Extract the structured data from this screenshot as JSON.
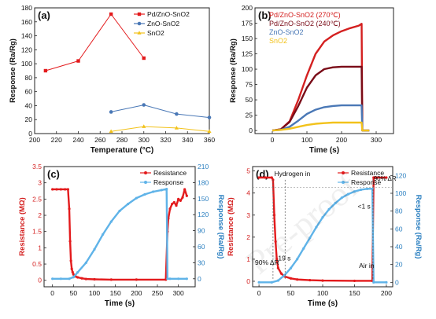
{
  "watermark": "Pre-proof",
  "chart_data": [
    {
      "panel": "(a)",
      "type": "line",
      "xlabel": "Temperature (°C)",
      "ylabel": "Response (Ra/Rg)",
      "xlim": [
        200,
        360
      ],
      "ylim": [
        0,
        180
      ],
      "xticks": [
        200,
        220,
        240,
        260,
        280,
        300,
        320,
        340,
        360
      ],
      "yticks": [
        0,
        20,
        40,
        60,
        80,
        100,
        120,
        140,
        160,
        180
      ],
      "legend_position": "top-right",
      "series": [
        {
          "name": "Pd/ZnO-SnO2",
          "color": "#e31a1c",
          "marker": "square",
          "x": [
            210,
            240,
            270,
            300
          ],
          "y": [
            90,
            104,
            171,
            108
          ]
        },
        {
          "name": "ZnO-SnO2",
          "color": "#4a78b6",
          "marker": "circle",
          "x": [
            270,
            300,
            330,
            360
          ],
          "y": [
            31,
            41,
            28,
            23
          ]
        },
        {
          "name": "SnO2",
          "color": "#f2c21b",
          "marker": "triangle",
          "x": [
            270,
            300,
            330,
            360
          ],
          "y": [
            3,
            10,
            8,
            3
          ]
        }
      ]
    },
    {
      "panel": "(b)",
      "type": "line",
      "xlabel": "Time (s)",
      "ylabel": "Response (Ra/Rg)",
      "xlim": [
        -50,
        350
      ],
      "ylim": [
        -5,
        200
      ],
      "xticks": [
        0,
        100,
        200,
        300
      ],
      "yticks": [
        0,
        25,
        50,
        75,
        100,
        125,
        150,
        175,
        200
      ],
      "legend_position": "top-left",
      "series": [
        {
          "name": "Pd/ZnO-SnO2 (270℃)",
          "color": "#d42020",
          "x": [
            0,
            25,
            50,
            75,
            100,
            125,
            150,
            175,
            200,
            225,
            250,
            258,
            260,
            280
          ],
          "y": [
            0,
            2,
            15,
            50,
            90,
            125,
            145,
            155,
            162,
            167,
            171,
            174,
            0,
            0
          ]
        },
        {
          "name": "Pd/ZnO-SnO2 (240℃)",
          "color": "#7a0c18",
          "x": [
            0,
            25,
            50,
            75,
            100,
            125,
            150,
            175,
            200,
            225,
            250,
            258,
            260,
            280
          ],
          "y": [
            0,
            2,
            14,
            40,
            70,
            90,
            100,
            103,
            104,
            104,
            104,
            104,
            0,
            0
          ]
        },
        {
          "name": "ZnO-SnO2",
          "color": "#4a78b6",
          "x": [
            0,
            25,
            50,
            75,
            100,
            125,
            150,
            175,
            200,
            225,
            250,
            258,
            260,
            280
          ],
          "y": [
            0,
            1,
            6,
            16,
            27,
            34,
            38,
            40,
            41,
            41,
            41,
            41,
            0,
            0
          ]
        },
        {
          "name": "SnO2",
          "color": "#f2c21b",
          "x": [
            0,
            25,
            50,
            75,
            100,
            125,
            150,
            175,
            200,
            225,
            250,
            258,
            260,
            280
          ],
          "y": [
            0,
            1,
            3,
            6,
            9,
            11,
            12,
            13,
            13,
            13,
            13,
            13,
            0,
            0
          ]
        }
      ]
    },
    {
      "panel": "(c)",
      "type": "line",
      "xlabel": "Time (s)",
      "ylabel": "Resistance (MΩ)",
      "ylabel_right": "Response (Ra/Rg)",
      "xlim": [
        -20,
        340
      ],
      "ylim": [
        -0.2,
        3.5
      ],
      "ylim_right": [
        -15,
        210
      ],
      "xticks": [
        0,
        50,
        100,
        150,
        200,
        250,
        300
      ],
      "yticks": [
        0.0,
        0.5,
        1.0,
        1.5,
        2.0,
        2.5,
        3.0,
        3.5
      ],
      "yticks_right": [
        0,
        30,
        60,
        90,
        120,
        150,
        180,
        210
      ],
      "legend_position": "top-right",
      "series": [
        {
          "name": "Resistance",
          "axis": "left",
          "color": "#e31a1c",
          "x": [
            0,
            10,
            20,
            30,
            37,
            40,
            42,
            44,
            46,
            48,
            50,
            55,
            60,
            70,
            80,
            100,
            140,
            200,
            270,
            274,
            276,
            280,
            285,
            290,
            295,
            300,
            305,
            310,
            315,
            320
          ],
          "y": [
            2.8,
            2.8,
            2.8,
            2.8,
            2.8,
            2.2,
            1.2,
            0.6,
            0.35,
            0.25,
            0.18,
            0.12,
            0.09,
            0.06,
            0.04,
            0.03,
            0.02,
            0.02,
            0.02,
            1.5,
            1.9,
            2.2,
            2.35,
            2.4,
            2.3,
            2.5,
            2.45,
            2.55,
            2.8,
            2.6
          ]
        },
        {
          "name": "Response",
          "axis": "right",
          "color": "#5fb3e8",
          "x": [
            0,
            20,
            40,
            50,
            60,
            80,
            100,
            120,
            140,
            160,
            180,
            200,
            220,
            240,
            260,
            272,
            274,
            280,
            300,
            320
          ],
          "y": [
            0,
            0,
            0,
            3,
            12,
            30,
            55,
            83,
            107,
            127,
            140,
            151,
            158,
            163,
            166,
            168,
            0,
            0,
            0,
            0
          ]
        }
      ]
    },
    {
      "panel": "(d)",
      "type": "line",
      "xlabel": "Time (s)",
      "ylabel": "Resistance (MΩ)",
      "ylabel_right": "Response (Ra/Rg)",
      "xlim": [
        -10,
        210
      ],
      "ylim": [
        -0.25,
        5.2
      ],
      "ylim_right": [
        -5,
        130
      ],
      "xticks": [
        0,
        50,
        100,
        150,
        200
      ],
      "yticks": [
        0,
        1,
        2,
        3,
        4,
        5
      ],
      "yticks_right": [
        0,
        20,
        40,
        60,
        80,
        100,
        120
      ],
      "legend_position": "top-right",
      "annotations": [
        "Hydrogen in",
        "19 s",
        "90% ΔR",
        "<1 s",
        "90% ΔR",
        "Air in"
      ],
      "series": [
        {
          "name": "Resistance",
          "axis": "left",
          "color": "#e31a1c",
          "x": [
            0,
            10,
            20,
            22,
            24,
            26,
            28,
            30,
            35,
            40,
            50,
            60,
            80,
            100,
            150,
            178,
            180,
            185,
            200
          ],
          "y": [
            4.7,
            4.7,
            4.7,
            4.6,
            3.0,
            1.8,
            1.0,
            0.6,
            0.35,
            0.22,
            0.13,
            0.08,
            0.05,
            0.03,
            0.02,
            0.02,
            4.7,
            4.7,
            4.7
          ]
        },
        {
          "name": "Response",
          "axis": "right",
          "color": "#5fb3e8",
          "x": [
            0,
            20,
            30,
            40,
            50,
            60,
            70,
            80,
            90,
            100,
            110,
            120,
            130,
            140,
            150,
            160,
            170,
            178,
            180,
            200
          ],
          "y": [
            0,
            0,
            2,
            8,
            16,
            26,
            38,
            50,
            62,
            73,
            82,
            89,
            95,
            99,
            102,
            104,
            105,
            105,
            0,
            0
          ]
        }
      ]
    }
  ]
}
